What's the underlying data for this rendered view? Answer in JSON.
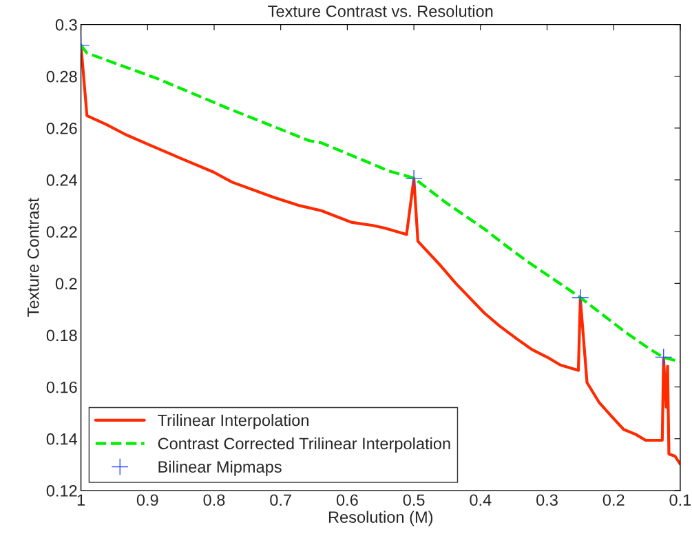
{
  "chart_data": {
    "type": "line",
    "title": "Texture Contrast vs. Resolution",
    "xlabel": "Resolution (M)",
    "ylabel": "Texture Contrast",
    "xlim": [
      1,
      0.1
    ],
    "ylim": [
      0.12,
      0.3
    ],
    "xticks": [
      1,
      0.9,
      0.8,
      0.7,
      0.6,
      0.5,
      0.4,
      0.3,
      0.2,
      0.1
    ],
    "yticks": [
      0.12,
      0.14,
      0.16,
      0.18,
      0.2,
      0.22,
      0.24,
      0.26,
      0.28,
      0.3
    ],
    "grid": false,
    "legend": "bottom left",
    "series": [
      {
        "name": "Trilinear Interpolation",
        "color": "#ff2a00",
        "line_style": "solid",
        "marker": "none",
        "x": [
          1,
          0.991,
          0.962,
          0.933,
          0.9,
          0.85,
          0.801,
          0.773,
          0.711,
          0.674,
          0.639,
          0.594,
          0.56,
          0.543,
          0.511,
          0.5,
          0.494,
          0.459,
          0.437,
          0.394,
          0.371,
          0.346,
          0.323,
          0.299,
          0.28,
          0.253,
          0.25,
          0.24,
          0.222,
          0.203,
          0.185,
          0.167,
          0.152,
          0.127,
          0.125,
          0.121,
          0.119,
          0.117,
          0.108,
          0.1
        ],
        "values": [
          0.292,
          0.2648,
          0.2614,
          0.2575,
          0.2538,
          0.2483,
          0.243,
          0.2391,
          0.2333,
          0.2302,
          0.2281,
          0.2236,
          0.2223,
          0.2213,
          0.2189,
          0.2405,
          0.2163,
          0.2066,
          0.2,
          0.1885,
          0.1835,
          0.1787,
          0.1745,
          0.1714,
          0.1685,
          0.1664,
          0.194,
          0.1617,
          0.1541,
          0.1486,
          0.1436,
          0.1417,
          0.1394,
          0.1394,
          0.171,
          0.1522,
          0.168,
          0.1341,
          0.1333,
          0.1302
        ]
      },
      {
        "name": "Contrast Corrected Trilinear Interpolation",
        "color": "#00ee00",
        "line_style": "dashed",
        "marker": "none",
        "x": [
          1,
          0.991,
          0.895,
          0.887,
          0.778,
          0.657,
          0.639,
          0.553,
          0.54,
          0.5,
          0.452,
          0.394,
          0.364,
          0.332,
          0.266,
          0.25,
          0.182,
          0.145,
          0.125,
          0.1
        ],
        "values": [
          0.292,
          0.289,
          0.28,
          0.2793,
          0.2675,
          0.2551,
          0.2543,
          0.2451,
          0.2436,
          0.2407,
          0.2312,
          0.221,
          0.215,
          0.2089,
          0.1974,
          0.1945,
          0.1811,
          0.1745,
          0.1714,
          0.1698
        ]
      },
      {
        "name": "Bilinear Mipmaps",
        "type": "scatter",
        "color": "#3050ff",
        "marker": "cross",
        "x": [
          1,
          0.5,
          0.25,
          0.125
        ],
        "values": [
          0.292,
          0.2405,
          0.1945,
          0.1715
        ]
      }
    ]
  }
}
